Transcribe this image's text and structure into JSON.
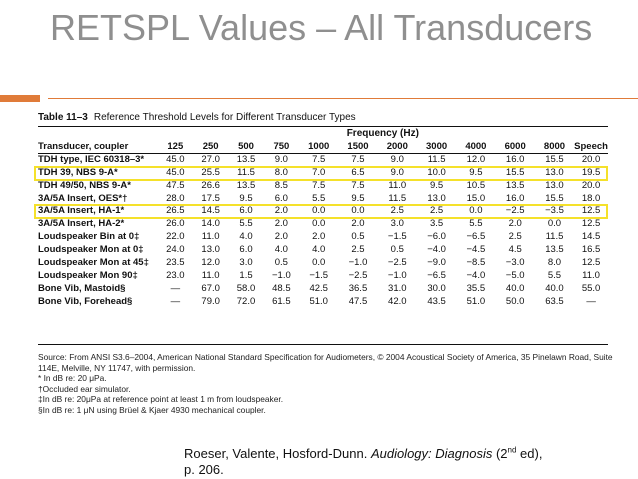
{
  "slide": {
    "title": "RETSPL Values – All Transducers"
  },
  "table": {
    "label": "Table 11–3",
    "caption": "Reference Threshold Levels for Different Transducer Types",
    "frequency_header": "Frequency (Hz)",
    "columns": [
      "Transducer, coupler",
      "125",
      "250",
      "500",
      "750",
      "1000",
      "1500",
      "2000",
      "3000",
      "4000",
      "6000",
      "8000",
      "Speech"
    ],
    "rows": [
      [
        "TDH type, IEC 60318–3*",
        "45.0",
        "27.0",
        "13.5",
        "9.0",
        "7.5",
        "7.5",
        "9.0",
        "11.5",
        "12.0",
        "16.0",
        "15.5",
        "20.0"
      ],
      [
        "TDH 39, NBS 9-A*",
        "45.0",
        "25.5",
        "11.5",
        "8.0",
        "7.0",
        "6.5",
        "9.0",
        "10.0",
        "9.5",
        "15.5",
        "13.0",
        "19.5"
      ],
      [
        "TDH 49/50, NBS 9-A*",
        "47.5",
        "26.6",
        "13.5",
        "8.5",
        "7.5",
        "7.5",
        "11.0",
        "9.5",
        "10.5",
        "13.5",
        "13.0",
        "20.0"
      ],
      [
        "3A/5A Insert, OES*†",
        "28.0",
        "17.5",
        "9.5",
        "6.0",
        "5.5",
        "9.5",
        "11.5",
        "13.0",
        "15.0",
        "16.0",
        "15.5",
        "18.0"
      ],
      [
        "3A/5A Insert, HA-1*",
        "26.5",
        "14.5",
        "6.0",
        "2.0",
        "0.0",
        "0.0",
        "2.5",
        "2.5",
        "0.0",
        "−2.5",
        "−3.5",
        "12.5"
      ],
      [
        "3A/5A Insert, HA-2*",
        "26.0",
        "14.0",
        "5.5",
        "2.0",
        "0.0",
        "2.0",
        "3.0",
        "3.5",
        "5.5",
        "2.0",
        "0.0",
        "12.5"
      ],
      [
        "Loudspeaker Bin at 0‡",
        "22.0",
        "11.0",
        "4.0",
        "2.0",
        "2.0",
        "0.5",
        "−1.5",
        "−6.0",
        "−6.5",
        "2.5",
        "11.5",
        "14.5"
      ],
      [
        "Loudspeaker Mon at 0‡",
        "24.0",
        "13.0",
        "6.0",
        "4.0",
        "4.0",
        "2.5",
        "0.5",
        "−4.0",
        "−4.5",
        "4.5",
        "13.5",
        "16.5"
      ],
      [
        "Loudspeaker Mon at 45‡",
        "23.5",
        "12.0",
        "3.0",
        "0.5",
        "0.0",
        "−1.0",
        "−2.5",
        "−9.0",
        "−8.5",
        "−3.0",
        "8.0",
        "12.5"
      ],
      [
        "Loudspeaker Mon 90‡",
        "23.0",
        "11.0",
        "1.5",
        "−1.0",
        "−1.5",
        "−2.5",
        "−1.0",
        "−6.5",
        "−4.0",
        "−5.0",
        "5.5",
        "11.0"
      ],
      [
        "Bone Vib, Mastoid§",
        "—",
        "67.0",
        "58.0",
        "48.5",
        "42.5",
        "36.5",
        "31.0",
        "30.0",
        "35.5",
        "40.0",
        "40.0",
        "55.0"
      ],
      [
        "Bone Vib, Forehead§",
        "—",
        "79.0",
        "72.0",
        "61.5",
        "51.0",
        "47.5",
        "42.0",
        "43.5",
        "51.0",
        "50.0",
        "63.5",
        "—"
      ]
    ],
    "highlighted_rows": [
      1,
      4
    ]
  },
  "notes": [
    "Source: From ANSI S3.6–2004, American National Standard Specification for Audiometers, © 2004 Acoustical Society of America, 35 Pinelawn Road, Suite 114E, Melville, NY 11747, with permission.",
    "* In dB re: 20 μPa.",
    "†Occluded ear simulator.",
    "‡In dB re: 20μPa at reference point at least 1 m from loudspeaker.",
    "§In dB re: 1 μN using Brüel & Kjaer 4930 mechanical coupler."
  ],
  "citation": {
    "authors": "Roeser, Valente, Hosford-Dunn.",
    "book": "Audiology: Diagnosis",
    "edition_open": "(2",
    "edition_sup": "nd",
    "edition_close": " ed),",
    "page": "p. 206."
  },
  "colors": {
    "title": "#8f8f8f",
    "accent": "#e07b39",
    "highlight": "#f5e12a"
  }
}
